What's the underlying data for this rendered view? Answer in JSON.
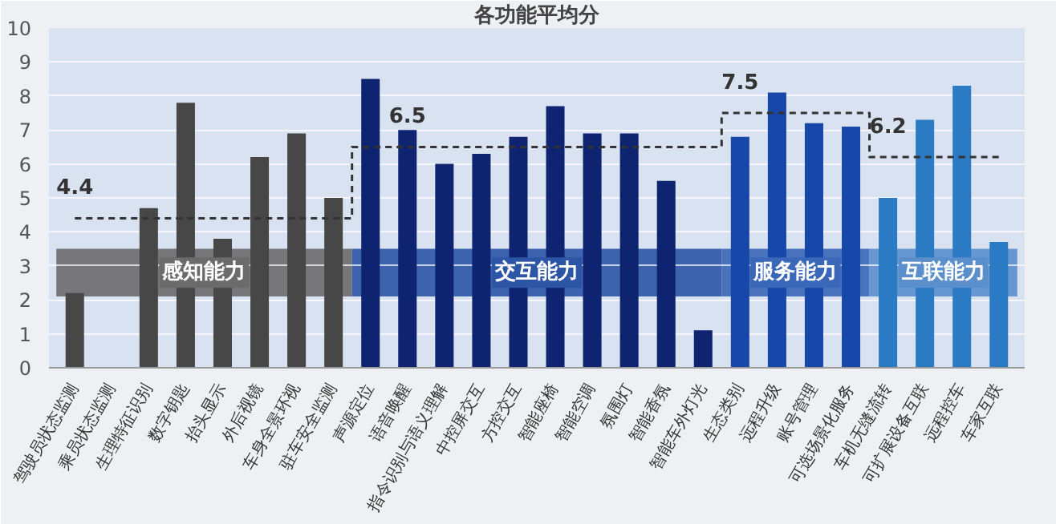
{
  "chart_data": {
    "type": "bar",
    "title": "各功能平均分",
    "categories": [
      "驾驶员状态监测",
      "乘员状态监测",
      "生理特征识别",
      "数字钥匙",
      "抬头显示",
      "外后视镜",
      "车身全景环视",
      "驻车安全监测",
      "声源定位",
      "语音唤醒",
      "指令识别与语义理解",
      "中控屏交互",
      "方控交互",
      "智能座椅",
      "智能空调",
      "氛围灯",
      "智能香氛",
      "智能车外灯光",
      "生态类别",
      "远程升级",
      "账号管理",
      "可选场景化服务",
      "车机无缝流转",
      "可扩展设备互联",
      "远程控车",
      "车家互联"
    ],
    "series": [
      {
        "values": [
          2.2,
          0,
          4.7,
          7.8,
          3.8,
          6.2,
          6.9,
          5.0,
          8.5,
          7.0,
          6.0,
          6.3,
          6.8,
          7.7,
          6.9,
          6.9,
          5.5,
          1.1,
          6.8,
          8.1,
          7.2,
          7.1,
          5.0,
          7.3,
          8.3,
          3.7
        ],
        "colors": [
          "#474747",
          "#474747",
          "#474747",
          "#474747",
          "#474747",
          "#474747",
          "#474747",
          "#474747",
          "#0f2470",
          "#0f2470",
          "#0f2470",
          "#0f2470",
          "#0f2470",
          "#0f2470",
          "#0f2470",
          "#0f2470",
          "#0f2470",
          "#0f2470",
          "#1747a8",
          "#1747a8",
          "#1747a8",
          "#1747a8",
          "#2b7ac4",
          "#2b7ac4",
          "#2b7ac4",
          "#2b7ac4"
        ]
      },
      {
        "type": "step",
        "values": [
          4.4,
          4.4,
          4.4,
          4.4,
          4.4,
          4.4,
          4.4,
          4.4,
          6.5,
          6.5,
          6.5,
          6.5,
          6.5,
          6.5,
          6.5,
          6.5,
          6.5,
          6.5,
          7.5,
          7.5,
          7.5,
          7.5,
          6.2,
          6.2,
          6.2,
          6.2
        ],
        "color": "#333333",
        "line_style": "dashed",
        "marker": "none"
      }
    ],
    "annotations": [
      {
        "text": "4.4",
        "x": "驾驶员状态监测",
        "y": 4.4
      },
      {
        "text": "6.5",
        "x": "语音唤醒",
        "y": 6.5
      },
      {
        "text": "7.5",
        "x": "生态类别",
        "y": 7.5
      },
      {
        "text": "6.2",
        "x": "车机无缝流转",
        "y": 6.2
      }
    ],
    "bands": [
      {
        "axis": "x",
        "from": "驾驶员状态监测",
        "to": "驻车安全监测",
        "label": "感知能力",
        "color": "#6b6b6b"
      },
      {
        "axis": "x",
        "from": "声源定位",
        "to": "智能车外灯光",
        "label": "交互能力",
        "color": "#2c55a6"
      },
      {
        "axis": "x",
        "from": "生态类别",
        "to": "可选场景化服务",
        "label": "服务能力",
        "color": "#3a67b8"
      },
      {
        "axis": "x",
        "from": "车机无缝流转",
        "to": "车家互联",
        "label": "互联能力",
        "color": "#5a8fcc"
      }
    ],
    "ylim": [
      0,
      10
    ],
    "yticks": [
      0,
      1,
      2,
      3,
      4,
      5,
      6,
      7,
      8,
      9,
      10
    ],
    "grid": "y"
  }
}
